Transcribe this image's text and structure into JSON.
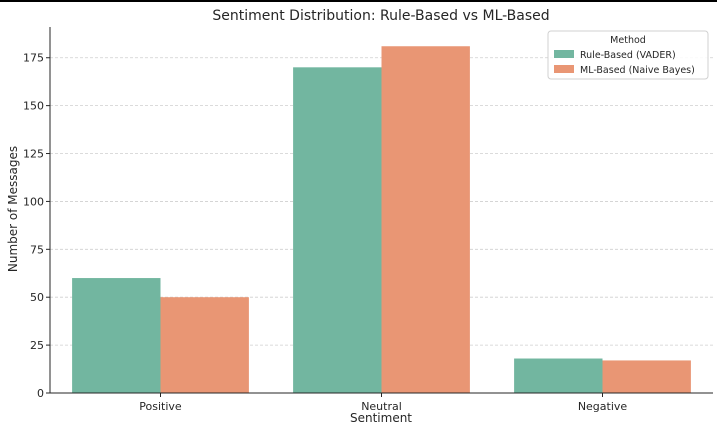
{
  "chart_data": {
    "type": "bar",
    "title": "Sentiment Distribution: Rule-Based vs ML-Based",
    "xlabel": "Sentiment",
    "ylabel": "Number of Messages",
    "categories": [
      "Positive",
      "Neutral",
      "Negative"
    ],
    "series": [
      {
        "name": "Rule-Based (VADER)",
        "values": [
          60,
          170,
          18
        ],
        "color": "#72b6a0"
      },
      {
        "name": "ML-Based (Naive Bayes)",
        "values": [
          50,
          181,
          17
        ],
        "color": "#e99674"
      }
    ],
    "ylim": [
      0,
      190
    ],
    "yticks": [
      0,
      25,
      50,
      75,
      100,
      125,
      150,
      175
    ],
    "grid": "horizontal dashed",
    "legend": {
      "title": "Method",
      "placement": "top-right"
    }
  }
}
